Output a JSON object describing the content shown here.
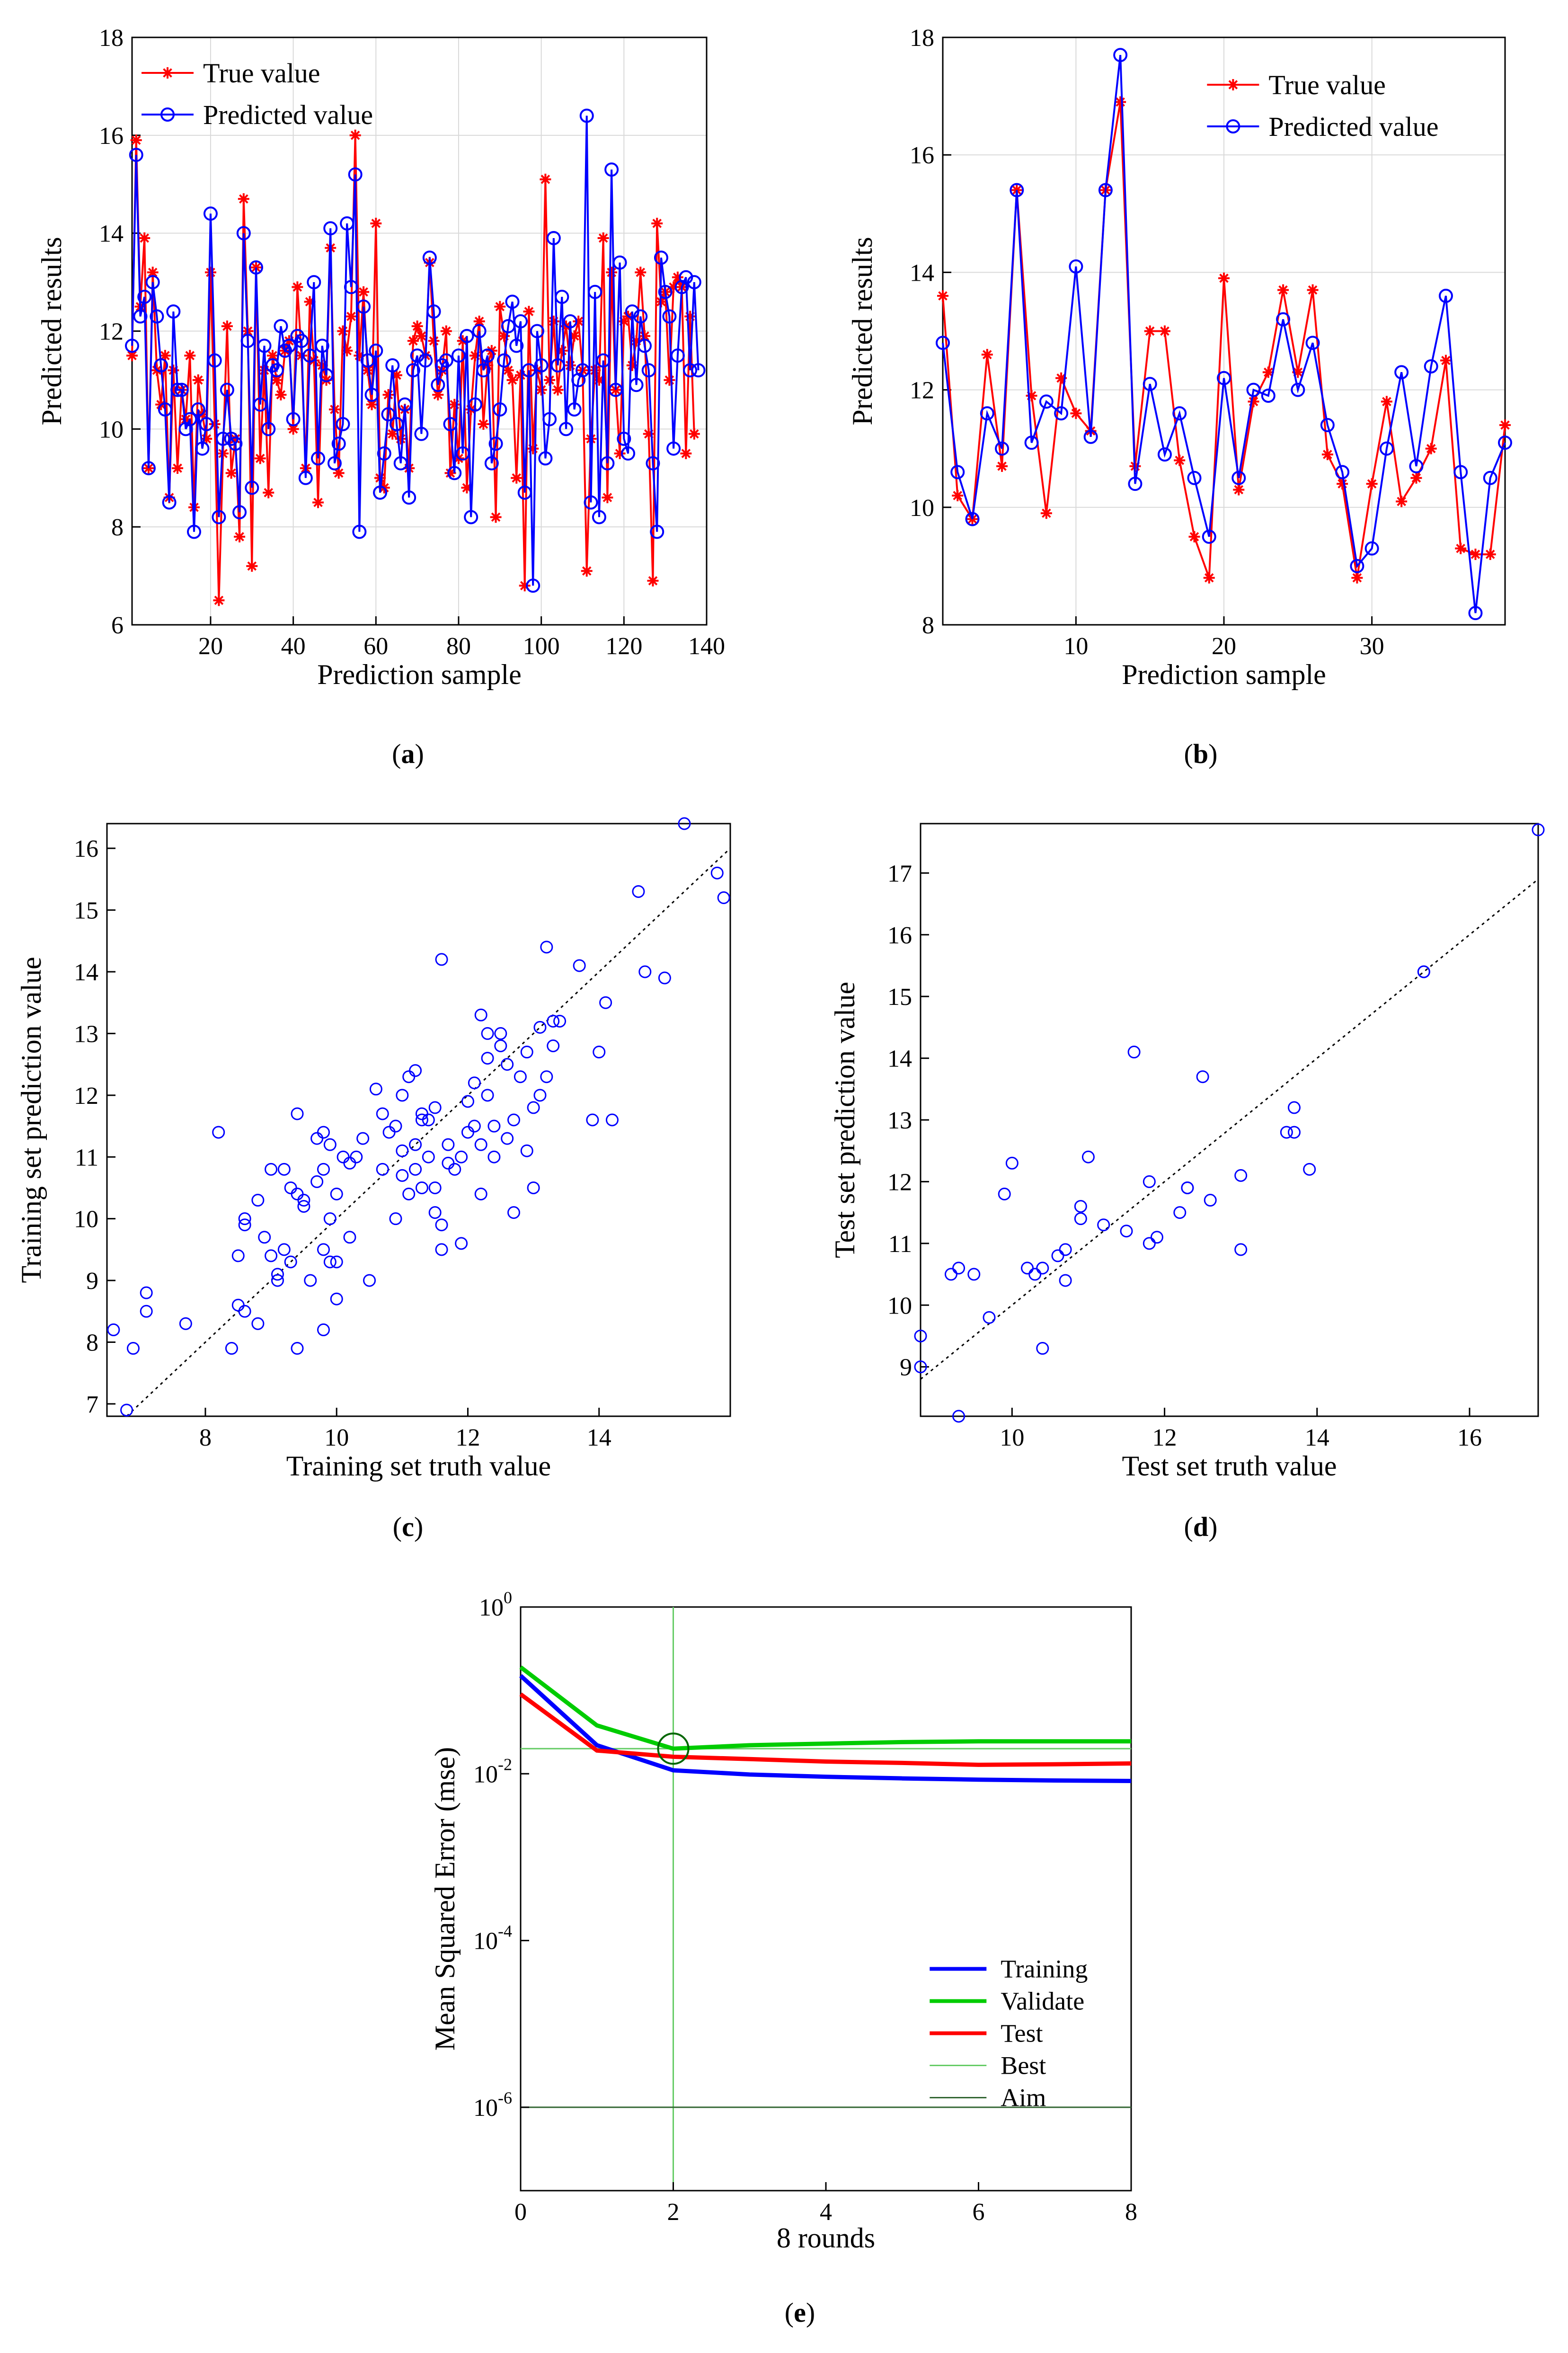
{
  "colors": {
    "true_series": "#ff0000",
    "pred_series": "#0000ff",
    "scatter_marker": "#0000ff",
    "training": "#0000ff",
    "validate": "#00cc00",
    "test": "#ff0000",
    "best_line": "#66cc66",
    "aim_line": "#336633",
    "grid": "#d9d9d9",
    "axis": "#000000"
  },
  "panel_labels": {
    "a": "a",
    "b": "b",
    "c": "c",
    "d": "d",
    "e": "e"
  },
  "chart_data": [
    {
      "id": "a",
      "type": "line",
      "xlabel": "Prediction sample",
      "ylabel": "Predicted results",
      "xlim": [
        1,
        140
      ],
      "ylim": [
        6,
        18
      ],
      "xticks": [
        20,
        40,
        60,
        80,
        100,
        120,
        140
      ],
      "yticks": [
        6,
        8,
        10,
        12,
        14,
        16,
        18
      ],
      "legend_position": "top-left",
      "series": [
        {
          "name": "True value",
          "marker": "asterisk",
          "values": [
            11.5,
            15.9,
            12.5,
            13.9,
            9.2,
            13.2,
            11.2,
            10.5,
            11.5,
            8.6,
            11.2,
            9.2,
            10.8,
            10.2,
            11.5,
            8.4,
            11.0,
            10.3,
            9.8,
            13.2,
            10.1,
            6.5,
            9.5,
            12.1,
            9.1,
            9.8,
            7.8,
            14.7,
            12.0,
            7.2,
            13.3,
            9.4,
            11.2,
            8.7,
            11.5,
            11.0,
            10.7,
            11.6,
            11.8,
            10.0,
            12.9,
            11.5,
            9.2,
            12.6,
            11.4,
            8.5,
            11.3,
            11.0,
            13.7,
            10.4,
            9.1,
            12.0,
            11.6,
            12.3,
            16.0,
            11.5,
            12.8,
            11.2,
            10.5,
            14.2,
            9.0,
            8.8,
            10.7,
            9.9,
            11.1,
            9.8,
            10.4,
            9.2,
            11.8,
            12.1,
            11.9,
            11.5,
            13.4,
            11.8,
            10.7,
            11.2,
            12.0,
            9.1,
            10.5,
            9.4,
            11.8,
            8.8,
            10.4,
            11.5,
            12.2,
            10.1,
            11.3,
            11.6,
            8.2,
            12.5,
            11.9,
            11.2,
            11.0,
            9.0,
            11.1,
            6.8,
            12.4,
            9.6,
            11.2,
            10.8,
            15.1,
            11.0,
            12.2,
            10.8,
            11.6,
            12.1,
            11.3,
            11.9,
            12.2,
            11.2,
            7.1,
            9.8,
            11.2,
            11.0,
            13.9,
            8.6,
            13.2,
            10.8,
            9.5,
            12.2,
            12.3,
            11.3,
            11.8,
            13.2,
            11.9,
            9.9,
            6.9,
            14.2,
            12.6,
            12.8,
            11.0,
            12.9,
            13.1,
            12.9,
            9.5,
            12.3,
            9.9
          ],
          "color_key": "true_series"
        },
        {
          "name": "Predicted value",
          "marker": "circle",
          "values": [
            11.7,
            15.6,
            12.3,
            12.7,
            9.2,
            13.0,
            12.3,
            11.3,
            10.4,
            8.5,
            12.4,
            10.8,
            10.8,
            10.0,
            10.2,
            7.9,
            10.4,
            9.6,
            10.1,
            14.4,
            11.4,
            8.2,
            9.8,
            10.8,
            9.8,
            9.7,
            8.3,
            14.0,
            11.8,
            8.8,
            13.3,
            10.5,
            11.7,
            10.0,
            11.3,
            11.2,
            12.1,
            11.6,
            11.7,
            10.2,
            11.9,
            11.8,
            9.0,
            11.5,
            13.0,
            9.4,
            11.7,
            11.1,
            14.1,
            9.3,
            9.7,
            10.1,
            14.2,
            12.9,
            15.2,
            7.9,
            12.5,
            11.4,
            10.7,
            11.6,
            8.7,
            9.5,
            10.3,
            11.3,
            10.1,
            9.3,
            10.5,
            8.6,
            11.2,
            11.5,
            9.9,
            11.4,
            13.5,
            12.4,
            10.9,
            11.3,
            11.4,
            10.1,
            9.1,
            11.5,
            9.5,
            11.9,
            8.2,
            10.5,
            12.0,
            11.2,
            11.5,
            9.3,
            9.7,
            10.4,
            11.4,
            12.1,
            12.6,
            11.7,
            12.2,
            8.7,
            11.2,
            6.8,
            12.0,
            11.3,
            9.4,
            10.2,
            13.9,
            11.3,
            12.7,
            10.0,
            12.2,
            10.4,
            11.0,
            11.2,
            16.4,
            8.5,
            12.8,
            8.2,
            11.4,
            9.3,
            15.3,
            10.8,
            13.4,
            9.8,
            9.5,
            12.4,
            10.9,
            12.3,
            11.7,
            11.2,
            9.3,
            7.9,
            13.5,
            12.8,
            12.3,
            9.6,
            11.5,
            12.9,
            13.1,
            11.2,
            13.0,
            11.2
          ],
          "color_key": "pred_series"
        }
      ]
    },
    {
      "id": "b",
      "type": "line",
      "xlabel": "Prediction sample",
      "ylabel": "Predicted results",
      "xlim": [
        1,
        39
      ],
      "ylim": [
        8,
        18
      ],
      "xticks": [
        10,
        20,
        30
      ],
      "yticks": [
        8,
        10,
        12,
        14,
        16,
        18
      ],
      "legend_position": "top-right",
      "series": [
        {
          "name": "True value",
          "marker": "asterisk",
          "values": [
            13.6,
            10.2,
            9.8,
            12.6,
            10.7,
            15.4,
            11.9,
            9.9,
            12.2,
            11.6,
            11.3,
            15.4,
            16.9,
            10.7,
            13.0,
            13.0,
            10.8,
            9.5,
            8.8,
            13.9,
            10.3,
            11.8,
            12.3,
            13.7,
            12.3,
            13.7,
            10.9,
            10.4,
            8.8,
            10.4,
            11.8,
            10.1,
            10.5,
            11.0,
            12.5,
            9.3,
            9.2,
            9.2,
            11.4
          ],
          "color_key": "true_series"
        },
        {
          "name": "Predicted value",
          "marker": "circle",
          "values": [
            12.8,
            10.6,
            9.8,
            11.6,
            11.0,
            15.4,
            11.1,
            11.8,
            11.6,
            14.1,
            11.2,
            15.4,
            17.7,
            10.4,
            12.1,
            10.9,
            11.6,
            10.5,
            9.5,
            12.2,
            10.5,
            12.0,
            11.9,
            13.2,
            12.0,
            12.8,
            11.4,
            10.6,
            9.0,
            9.3,
            11.0,
            12.3,
            10.7,
            12.4,
            13.6,
            10.6,
            8.2,
            10.5,
            11.1
          ],
          "color_key": "pred_series"
        }
      ]
    },
    {
      "id": "c",
      "type": "scatter",
      "xlabel": "Training set truth value",
      "ylabel": "Training set prediction value",
      "xlim": [
        6.5,
        16.0
      ],
      "ylim": [
        6.8,
        16.4
      ],
      "xticks": [
        8,
        10,
        12,
        14
      ],
      "yticks": [
        7,
        8,
        9,
        10,
        11,
        12,
        13,
        14,
        15,
        16
      ],
      "reference_line": "y = x",
      "points": [
        [
          6.6,
          8.2
        ],
        [
          6.8,
          6.9
        ],
        [
          6.9,
          7.9
        ],
        [
          7.1,
          8.5
        ],
        [
          7.1,
          8.8
        ],
        [
          7.7,
          8.3
        ],
        [
          8.2,
          11.4
        ],
        [
          8.4,
          7.9
        ],
        [
          8.5,
          9.4
        ],
        [
          8.5,
          8.6
        ],
        [
          8.6,
          8.5
        ],
        [
          8.6,
          9.9
        ],
        [
          8.6,
          10.0
        ],
        [
          8.8,
          10.3
        ],
        [
          8.8,
          8.3
        ],
        [
          8.9,
          9.7
        ],
        [
          9.0,
          10.8
        ],
        [
          9.0,
          9.4
        ],
        [
          9.1,
          9.1
        ],
        [
          9.1,
          9.0
        ],
        [
          9.2,
          9.5
        ],
        [
          9.2,
          10.8
        ],
        [
          9.3,
          9.3
        ],
        [
          9.3,
          10.5
        ],
        [
          9.4,
          7.9
        ],
        [
          9.4,
          11.7
        ],
        [
          9.4,
          10.4
        ],
        [
          9.5,
          10.2
        ],
        [
          9.5,
          10.3
        ],
        [
          9.6,
          9.0
        ],
        [
          9.7,
          11.3
        ],
        [
          9.7,
          10.6
        ],
        [
          9.8,
          9.5
        ],
        [
          9.8,
          11.4
        ],
        [
          9.8,
          10.8
        ],
        [
          9.8,
          8.2
        ],
        [
          9.9,
          10.0
        ],
        [
          9.9,
          9.3
        ],
        [
          9.9,
          11.2
        ],
        [
          10.0,
          9.3
        ],
        [
          10.0,
          8.7
        ],
        [
          10.0,
          10.4
        ],
        [
          10.1,
          11.0
        ],
        [
          10.2,
          9.7
        ],
        [
          10.2,
          10.9
        ],
        [
          10.3,
          11.0
        ],
        [
          10.4,
          11.3
        ],
        [
          10.5,
          9.0
        ],
        [
          10.6,
          12.1
        ],
        [
          10.7,
          10.8
        ],
        [
          10.7,
          11.7
        ],
        [
          10.8,
          11.4
        ],
        [
          10.9,
          11.5
        ],
        [
          10.9,
          10.0
        ],
        [
          11.0,
          10.7
        ],
        [
          11.0,
          11.1
        ],
        [
          11.0,
          12.0
        ],
        [
          11.1,
          10.4
        ],
        [
          11.1,
          12.3
        ],
        [
          11.2,
          11.2
        ],
        [
          11.2,
          12.4
        ],
        [
          11.2,
          10.8
        ],
        [
          11.3,
          11.6
        ],
        [
          11.3,
          10.5
        ],
        [
          11.3,
          11.7
        ],
        [
          11.4,
          11.0
        ],
        [
          11.4,
          11.6
        ],
        [
          11.5,
          10.1
        ],
        [
          11.5,
          10.5
        ],
        [
          11.5,
          11.8
        ],
        [
          11.6,
          9.5
        ],
        [
          11.6,
          9.9
        ],
        [
          11.6,
          14.2
        ],
        [
          11.7,
          10.9
        ],
        [
          11.7,
          11.2
        ],
        [
          11.8,
          10.8
        ],
        [
          11.9,
          9.6
        ],
        [
          11.9,
          11.0
        ],
        [
          12.0,
          11.4
        ],
        [
          12.0,
          11.9
        ],
        [
          12.1,
          11.5
        ],
        [
          12.1,
          12.2
        ],
        [
          12.2,
          10.4
        ],
        [
          12.2,
          11.2
        ],
        [
          12.2,
          13.3
        ],
        [
          12.3,
          12.0
        ],
        [
          12.3,
          12.6
        ],
        [
          12.3,
          13.0
        ],
        [
          12.4,
          11.0
        ],
        [
          12.4,
          11.5
        ],
        [
          12.5,
          13.0
        ],
        [
          12.5,
          12.8
        ],
        [
          12.6,
          11.3
        ],
        [
          12.6,
          12.5
        ],
        [
          12.7,
          10.1
        ],
        [
          12.7,
          11.6
        ],
        [
          12.8,
          12.3
        ],
        [
          12.9,
          11.1
        ],
        [
          12.9,
          12.7
        ],
        [
          13.0,
          10.5
        ],
        [
          13.0,
          11.8
        ],
        [
          13.1,
          12.0
        ],
        [
          13.1,
          13.1
        ],
        [
          13.2,
          12.3
        ],
        [
          13.2,
          14.4
        ],
        [
          13.3,
          13.2
        ],
        [
          13.3,
          12.8
        ],
        [
          13.4,
          13.2
        ],
        [
          13.7,
          14.1
        ],
        [
          13.9,
          11.6
        ],
        [
          14.0,
          12.7
        ],
        [
          14.1,
          13.5
        ],
        [
          14.2,
          11.6
        ],
        [
          14.6,
          15.3
        ],
        [
          14.7,
          14.0
        ],
        [
          15.0,
          13.9
        ],
        [
          15.3,
          16.4
        ],
        [
          15.8,
          15.6
        ],
        [
          15.9,
          15.2
        ]
      ]
    },
    {
      "id": "d",
      "type": "scatter",
      "xlabel": "Test set truth value",
      "ylabel": "Test set prediction value",
      "xlim": [
        8.8,
        16.9
      ],
      "ylim": [
        8.2,
        17.8
      ],
      "xticks": [
        10,
        12,
        14,
        16
      ],
      "yticks": [
        9,
        10,
        11,
        12,
        13,
        14,
        15,
        16,
        17
      ],
      "reference_line": "y = x",
      "points": [
        [
          8.8,
          9.0
        ],
        [
          8.8,
          9.5
        ],
        [
          9.2,
          10.5
        ],
        [
          9.3,
          10.6
        ],
        [
          9.3,
          8.2
        ],
        [
          9.5,
          10.5
        ],
        [
          9.7,
          9.8
        ],
        [
          9.9,
          11.8
        ],
        [
          10.0,
          12.3
        ],
        [
          10.2,
          10.6
        ],
        [
          10.3,
          10.5
        ],
        [
          10.4,
          10.6
        ],
        [
          10.4,
          9.3
        ],
        [
          10.6,
          10.8
        ],
        [
          10.7,
          10.4
        ],
        [
          10.7,
          10.9
        ],
        [
          10.9,
          11.6
        ],
        [
          10.9,
          11.4
        ],
        [
          11.0,
          12.4
        ],
        [
          11.2,
          11.3
        ],
        [
          11.5,
          11.2
        ],
        [
          11.6,
          14.1
        ],
        [
          11.8,
          12.0
        ],
        [
          11.8,
          11.0
        ],
        [
          11.9,
          11.1
        ],
        [
          12.2,
          11.5
        ],
        [
          12.3,
          11.9
        ],
        [
          12.3,
          11.9
        ],
        [
          12.5,
          13.7
        ],
        [
          12.6,
          11.7
        ],
        [
          13.0,
          12.1
        ],
        [
          13.0,
          10.9
        ],
        [
          13.6,
          12.8
        ],
        [
          13.7,
          12.8
        ],
        [
          13.7,
          13.2
        ],
        [
          13.9,
          12.2
        ],
        [
          15.4,
          15.4
        ],
        [
          15.4,
          15.4
        ],
        [
          16.9,
          17.7
        ]
      ]
    },
    {
      "id": "e",
      "type": "line",
      "xlabel": "8 rounds",
      "ylabel": "Mean Squared Error (mse)",
      "yscale": "log",
      "xlim": [
        0,
        8
      ],
      "ylim_exp": [
        -7,
        0
      ],
      "xticks": [
        0,
        2,
        4,
        6,
        8
      ],
      "ytick_base": "10",
      "ytick_exponents": [
        "0",
        "-2",
        "-4",
        "-6"
      ],
      "legend_position": "bottom-right",
      "legend": [
        "Training",
        "Validate",
        "Test",
        "Best",
        "Aim"
      ],
      "best_epoch": 2,
      "best_value": 0.02,
      "aim_value": 1e-06,
      "series": [
        {
          "name": "Training",
          "x": [
            0,
            1,
            2,
            3,
            4,
            5,
            6,
            7,
            8
          ],
          "values": [
            0.15,
            0.022,
            0.011,
            0.0098,
            0.0092,
            0.0088,
            0.0085,
            0.0083,
            0.0082
          ],
          "color_key": "training"
        },
        {
          "name": "Validate",
          "x": [
            0,
            1,
            2,
            3,
            4,
            5,
            6,
            7,
            8
          ],
          "values": [
            0.19,
            0.038,
            0.02,
            0.022,
            0.023,
            0.024,
            0.0245,
            0.0245,
            0.0245
          ],
          "color_key": "validate"
        },
        {
          "name": "Test",
          "x": [
            0,
            1,
            2,
            3,
            4,
            5,
            6,
            7,
            8
          ],
          "values": [
            0.09,
            0.019,
            0.016,
            0.015,
            0.014,
            0.0135,
            0.0128,
            0.013,
            0.0133
          ],
          "color_key": "test"
        }
      ]
    }
  ]
}
